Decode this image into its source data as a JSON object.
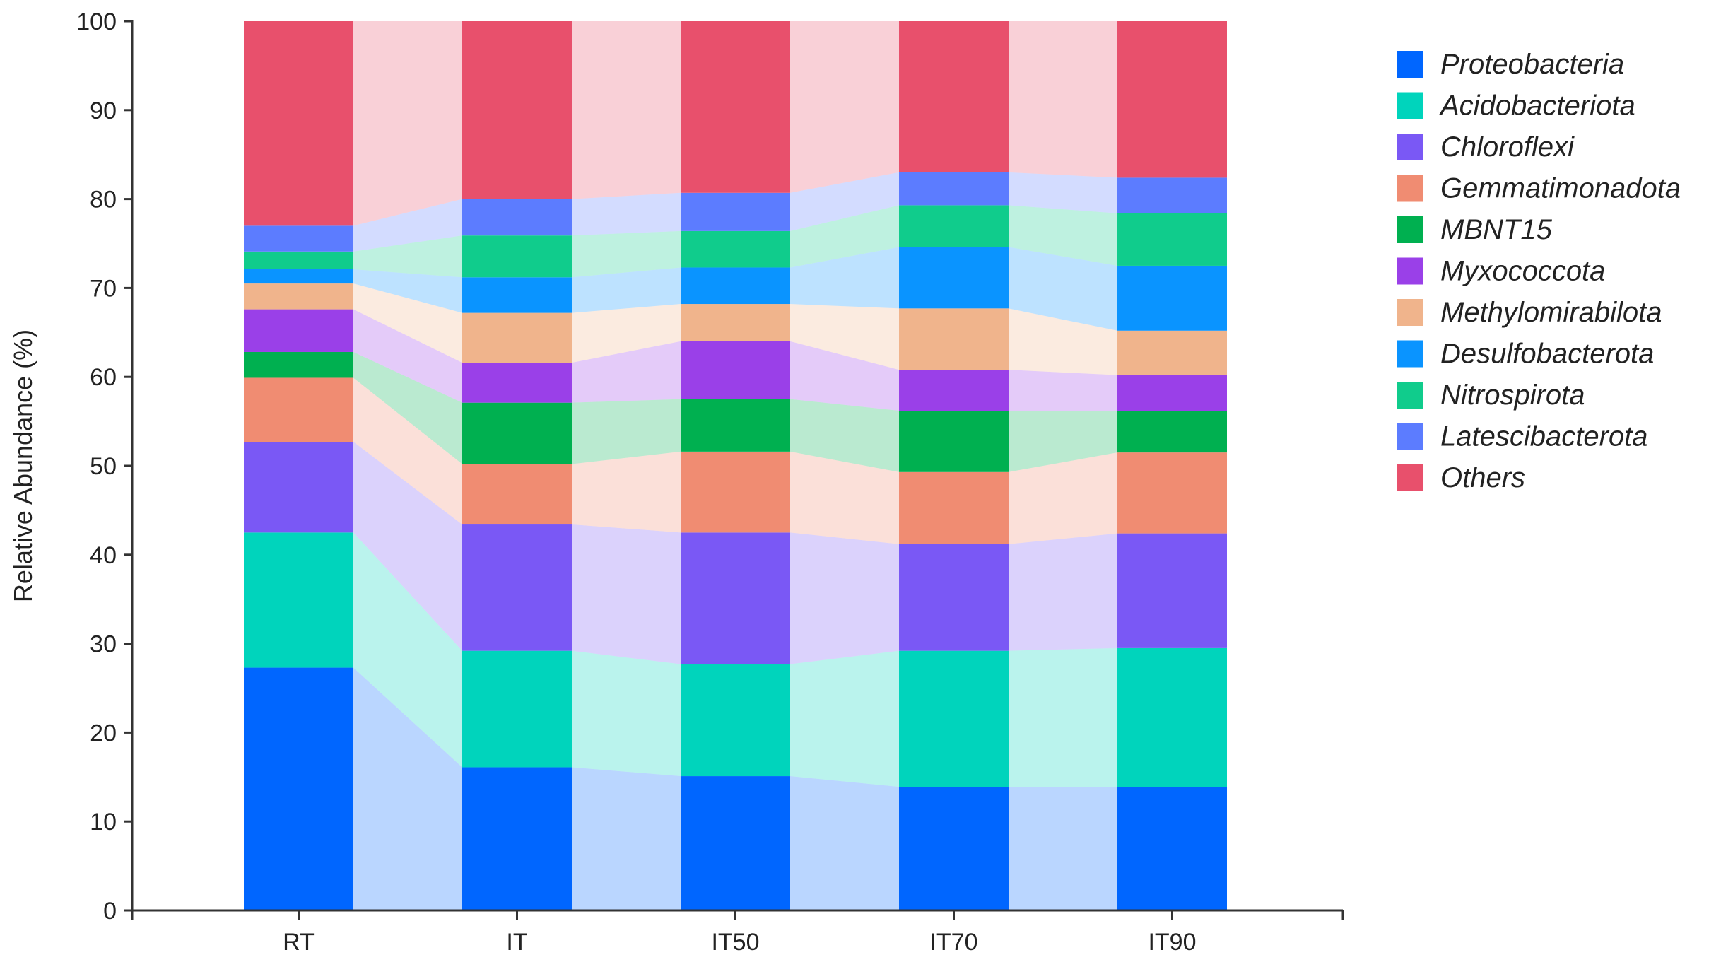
{
  "colors": {
    "Proteobacteria": "#0066ff",
    "Acidobacteriota": "#00d4bc",
    "Chloroflexi": "#7a58f5",
    "Gemmatimonadota": "#f08c72",
    "MBNT15": "#00b050",
    "Myxococcota": "#9a40e8",
    "Methylomirabilota": "#f0b48c",
    "Desulfobacterota": "#0a94ff",
    "Nitrospirota": "#10cc8c",
    "Latescibacterota": "#5c7cff",
    "Others": "#e8506c"
  },
  "chart_data": {
    "type": "bar",
    "stacked": true,
    "flow_bands_between_bars": true,
    "title": "",
    "xlabel": "",
    "ylabel": "Relative Abundance (%)",
    "ylim": [
      0,
      100
    ],
    "yticks": [
      0,
      10,
      20,
      30,
      40,
      50,
      60,
      70,
      80,
      90,
      100
    ],
    "grid": false,
    "legend_position": "right",
    "categories": [
      "RT",
      "IT",
      "IT50",
      "IT70",
      "IT90"
    ],
    "series": [
      {
        "name": "Proteobacteria",
        "values": [
          27.3,
          16.1,
          15.1,
          13.9,
          13.9
        ]
      },
      {
        "name": "Acidobacteriota",
        "values": [
          15.2,
          13.1,
          12.6,
          15.3,
          15.6
        ]
      },
      {
        "name": "Chloroflexi",
        "values": [
          10.2,
          14.2,
          14.8,
          12.0,
          12.9
        ]
      },
      {
        "name": "Gemmatimonadota",
        "values": [
          7.2,
          6.8,
          9.1,
          8.1,
          9.1
        ]
      },
      {
        "name": "MBNT15",
        "values": [
          2.9,
          6.9,
          5.9,
          6.9,
          4.7
        ]
      },
      {
        "name": "Myxococcota",
        "values": [
          4.8,
          4.5,
          6.5,
          4.6,
          4.0
        ]
      },
      {
        "name": "Methylomirabilota",
        "values": [
          2.9,
          5.6,
          4.2,
          6.9,
          5.0
        ]
      },
      {
        "name": "Desulfobacterota",
        "values": [
          1.6,
          4.0,
          4.1,
          6.9,
          7.3
        ]
      },
      {
        "name": "Nitrospirota",
        "values": [
          2.0,
          4.7,
          4.1,
          4.7,
          5.9
        ]
      },
      {
        "name": "Latescibacterota",
        "values": [
          2.9,
          4.1,
          4.3,
          3.7,
          4.0
        ]
      },
      {
        "name": "Others",
        "values": [
          23.0,
          20.0,
          19.3,
          17.0,
          17.6
        ]
      }
    ]
  }
}
